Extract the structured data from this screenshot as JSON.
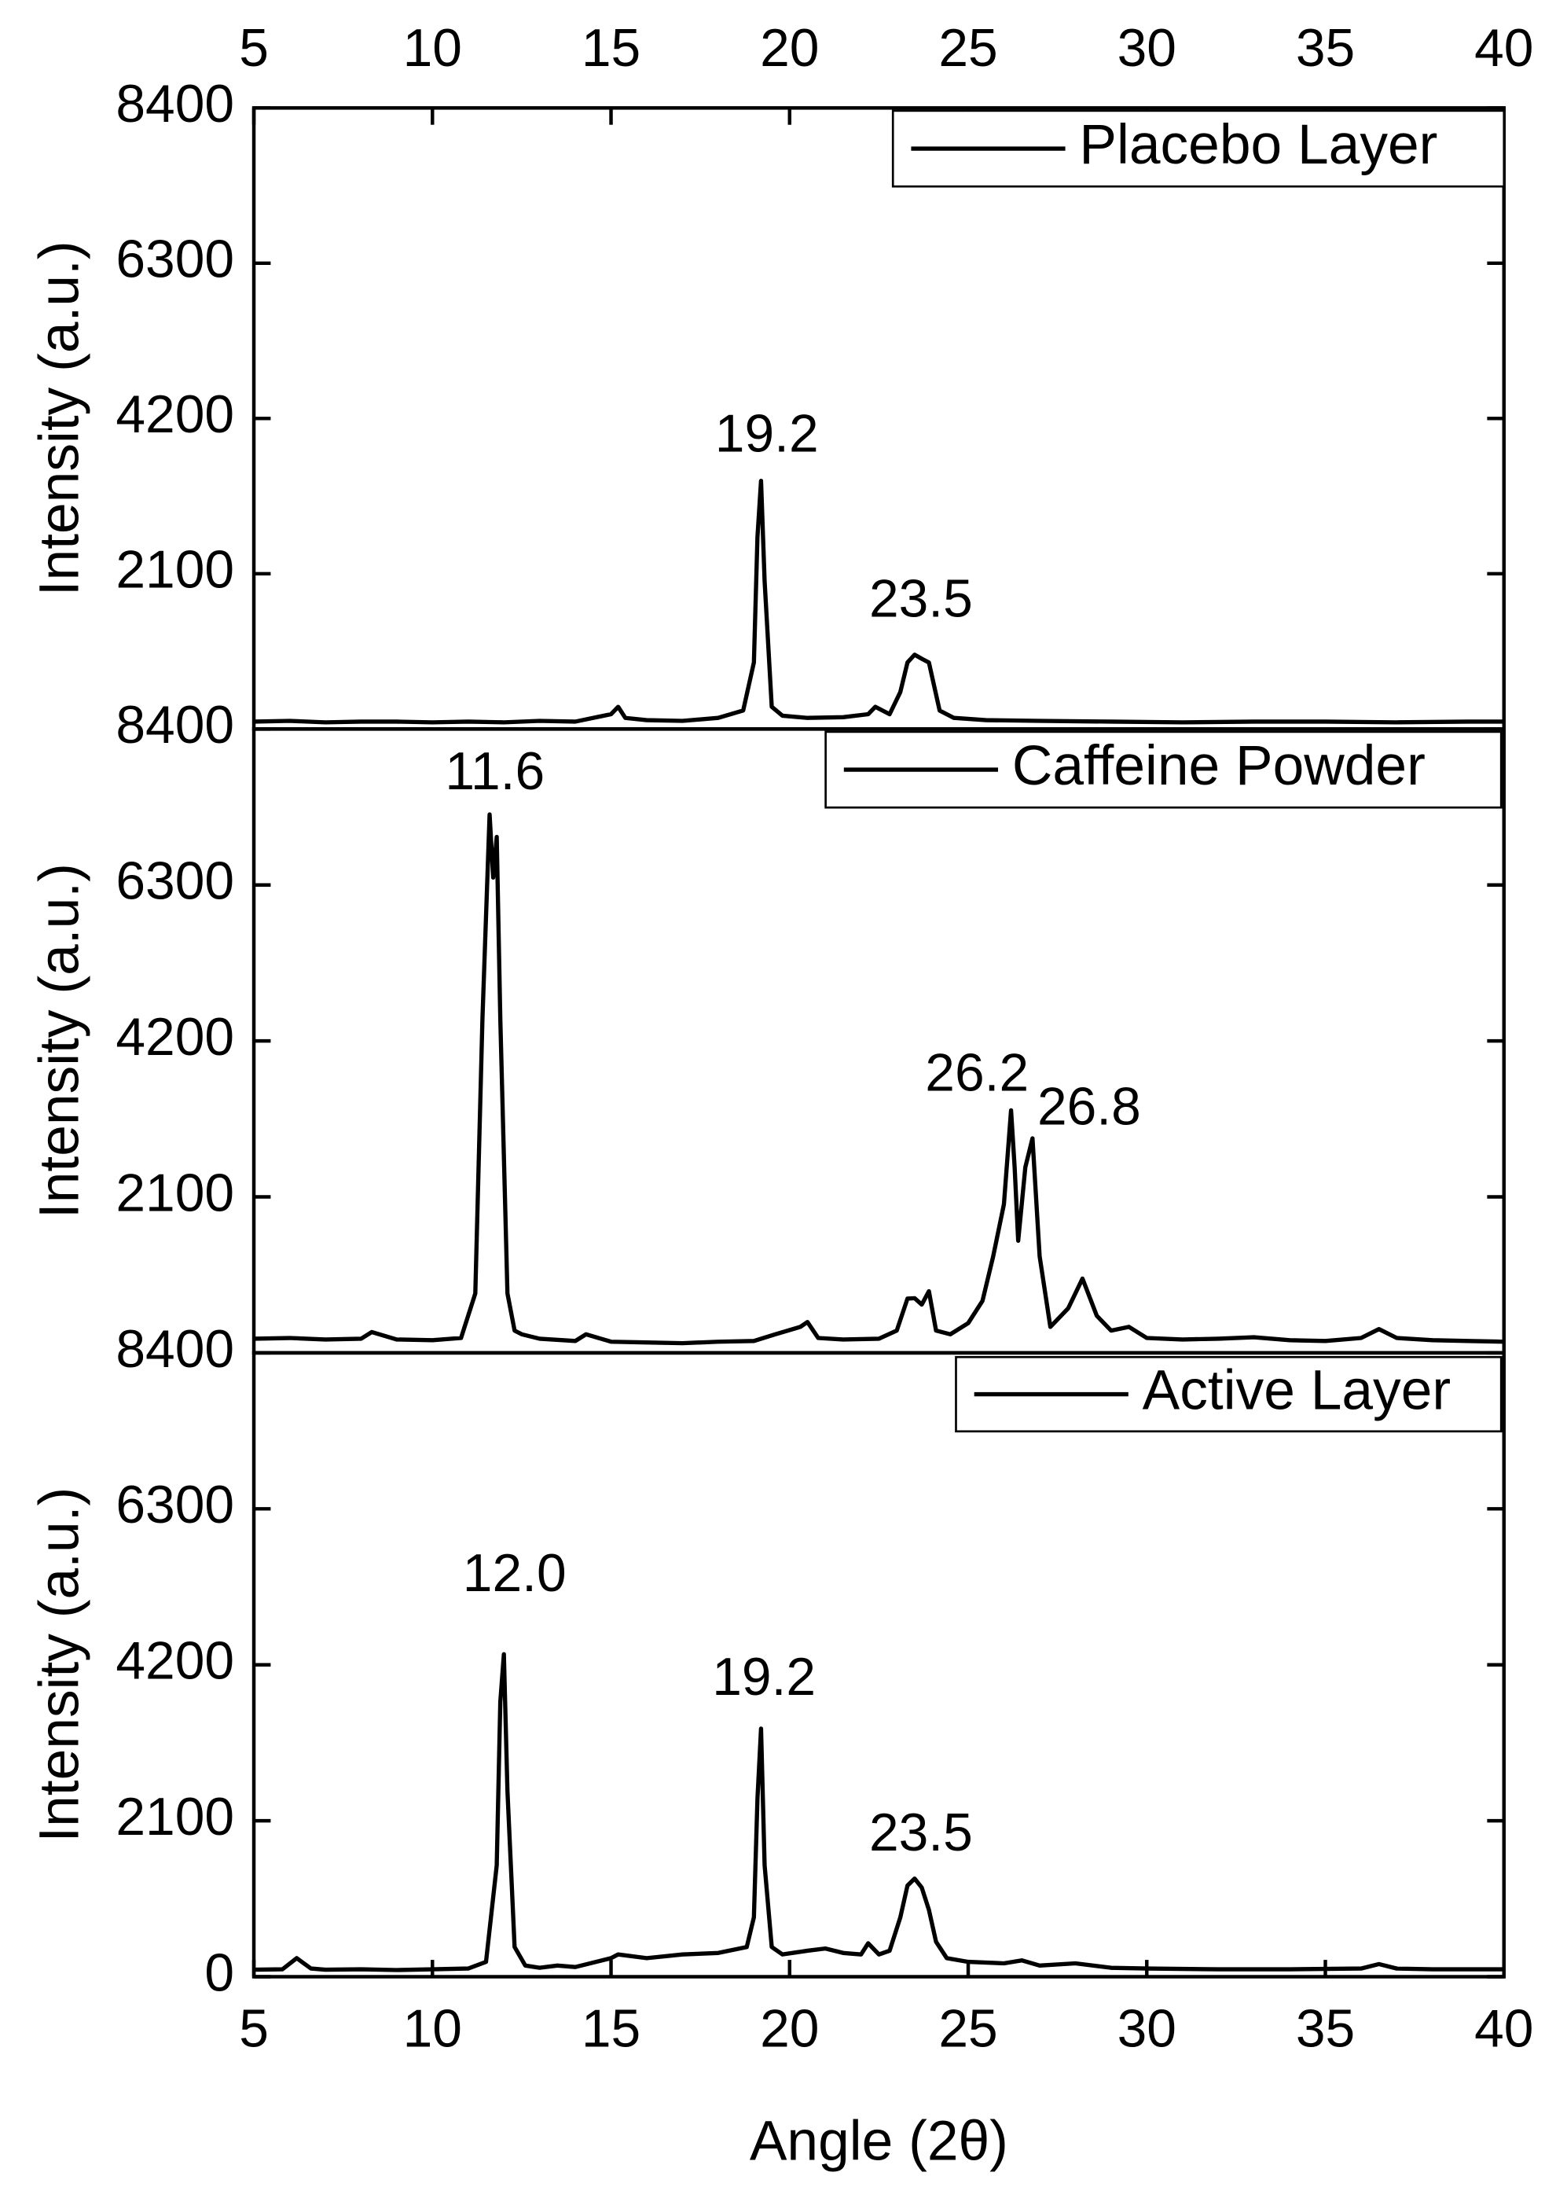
{
  "chart_data": [
    {
      "type": "line",
      "xlim": [
        5,
        40
      ],
      "xticks": [
        5,
        10,
        15,
        20,
        25,
        30,
        35,
        40
      ],
      "xtick_position": "top",
      "ylim": [
        0,
        8400
      ],
      "yticks": [
        2100,
        4200,
        6300,
        8400
      ],
      "y_label": "Intensity (a.u.)",
      "legend": "upper right",
      "x": [
        5,
        6,
        7,
        8,
        9,
        10,
        11,
        12,
        13,
        14,
        15,
        15.2,
        15.4,
        16,
        17,
        18,
        18.7,
        19.0,
        19.1,
        19.2,
        19.3,
        19.5,
        19.8,
        20.5,
        21.5,
        22.2,
        22.4,
        22.8,
        23.1,
        23.3,
        23.5,
        23.7,
        23.9,
        24.2,
        24.6,
        25.5,
        27,
        29,
        31,
        33,
        35,
        37,
        39,
        40
      ],
      "series": [
        {
          "name": "Placebo Layer",
          "color": "#000000",
          "values": [
            100,
            110,
            90,
            100,
            100,
            90,
            100,
            90,
            110,
            100,
            200,
            300,
            150,
            120,
            110,
            150,
            250,
            900,
            2600,
            3356,
            2000,
            300,
            180,
            150,
            160,
            200,
            300,
            200,
            500,
            900,
            1005,
            950,
            900,
            250,
            150,
            120,
            110,
            100,
            90,
            100,
            100,
            90,
            100,
            100
          ]
        }
      ],
      "annotations": [
        "19.2",
        "23.5"
      ]
    },
    {
      "type": "line",
      "xlim": [
        5,
        40
      ],
      "ylim": [
        0,
        8400
      ],
      "yticks": [
        2100,
        4200,
        6300,
        8400
      ],
      "y_label": "Intensity (a.u.)",
      "legend": "upper right",
      "x": [
        5,
        6,
        7,
        8,
        8.3,
        9,
        10,
        10.8,
        11.2,
        11.4,
        11.6,
        11.7,
        11.8,
        11.9,
        12.1,
        12.3,
        12.5,
        13,
        14,
        14.3,
        15,
        16,
        17,
        18,
        19,
        19.6,
        20.3,
        20.5,
        20.8,
        21.5,
        22.5,
        23,
        23.3,
        23.5,
        23.7,
        23.9,
        24.1,
        24.5,
        25,
        25.4,
        25.7,
        26.0,
        26.2,
        26.3,
        26.4,
        26.6,
        26.8,
        27.0,
        27.3,
        27.8,
        28.2,
        28.6,
        29,
        29.5,
        30,
        31,
        32,
        33,
        34,
        35,
        36,
        36.5,
        37,
        38,
        39,
        40
      ],
      "series": [
        {
          "name": "Caffeine Powder",
          "color": "#000000",
          "values": [
            190,
            200,
            180,
            190,
            280,
            180,
            170,
            200,
            800,
            4500,
            7249,
            6400,
            6946,
            4500,
            800,
            300,
            250,
            190,
            160,
            250,
            150,
            140,
            130,
            150,
            160,
            250,
            350,
            415,
            200,
            180,
            190,
            300,
            730,
            736,
            650,
            830,
            300,
            250,
            400,
            700,
            1300,
            2000,
            3266,
            2500,
            1510,
            2500,
            2888,
            1300,
            350,
            600,
            1000,
            500,
            300,
            350,
            200,
            180,
            190,
            210,
            170,
            160,
            200,
            320,
            200,
            170,
            160,
            150
          ]
        }
      ],
      "annotations": [
        "11.6",
        "26.2",
        "26.8"
      ]
    },
    {
      "type": "line",
      "xlim": [
        5,
        40
      ],
      "xticks": [
        5,
        10,
        15,
        20,
        25,
        30,
        35,
        40
      ],
      "xtick_position": "bottom",
      "ylim": [
        0,
        8400
      ],
      "yticks": [
        0,
        2100,
        4200,
        6300,
        8400
      ],
      "y_label": "Intensity (a.u.)",
      "x_label": "Angle (2θ)",
      "legend": "upper right",
      "x": [
        5,
        5.8,
        6.2,
        6.6,
        7,
        8,
        9,
        10,
        11,
        11.5,
        11.8,
        11.9,
        12.0,
        12.1,
        12.3,
        12.6,
        13,
        13.5,
        14,
        15,
        15.2,
        16,
        17,
        18,
        18.8,
        19.0,
        19.1,
        19.2,
        19.3,
        19.5,
        19.8,
        20.5,
        21,
        21.5,
        22,
        22.2,
        22.5,
        22.8,
        23.1,
        23.3,
        23.5,
        23.7,
        23.9,
        24.1,
        24.4,
        25,
        26,
        26.5,
        27,
        28,
        29,
        30,
        32,
        34,
        36,
        36.5,
        37,
        38,
        40
      ],
      "series": [
        {
          "name": "Active Layer",
          "color": "#000000",
          "values": [
            95,
            100,
            250,
            110,
            95,
            100,
            90,
            100,
            110,
            200,
            1500,
            3700,
            4342,
            2500,
            400,
            150,
            120,
            150,
            130,
            250,
            300,
            250,
            300,
            320,
            400,
            800,
            2400,
            3341,
            1500,
            400,
            300,
            350,
            380,
            320,
            300,
            450,
            300,
            350,
            800,
            1227,
            1321,
            1200,
            900,
            470,
            250,
            200,
            180,
            220,
            150,
            180,
            120,
            110,
            100,
            100,
            110,
            170,
            110,
            100,
            100
          ]
        }
      ],
      "annotations": [
        "12.0",
        "19.2",
        "23.5"
      ]
    }
  ]
}
